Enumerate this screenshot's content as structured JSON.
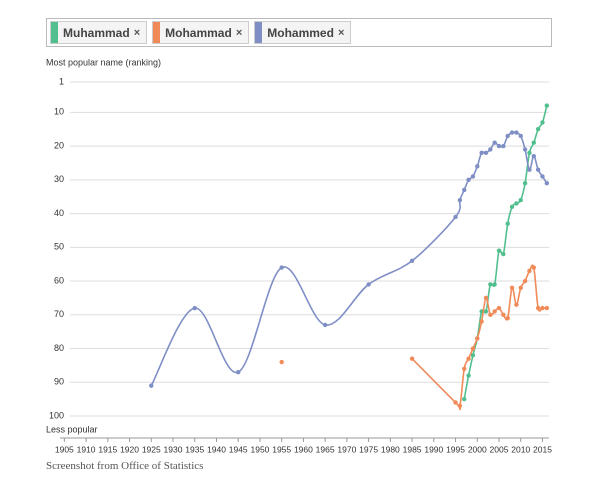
{
  "chart_data": {
    "type": "line",
    "y_title": "Most popular name (ranking)",
    "y_bottom_label": "Less popular",
    "legend_remove_icon": "×",
    "caption": "Screenshot from Office of Statistics",
    "xlim": [
      1904,
      2016.5
    ],
    "xticks": [
      1905,
      1910,
      1915,
      1920,
      1925,
      1930,
      1935,
      1940,
      1945,
      1950,
      1955,
      1960,
      1965,
      1970,
      1975,
      1980,
      1985,
      1990,
      1995,
      2000,
      2005,
      2010,
      2015
    ],
    "ylim": [
      100,
      1
    ],
    "yticks": [
      1,
      10,
      20,
      30,
      40,
      50,
      60,
      70,
      80,
      90,
      100
    ],
    "grid": true,
    "series": [
      {
        "name": "Muhammad",
        "color": "#52bf8f",
        "x": [
          1997,
          1998,
          1999,
          2000,
          2001,
          2002,
          2003,
          2004,
          2005,
          2006,
          2007,
          2008,
          2009,
          2010,
          2011,
          2012,
          2013,
          2014,
          2015,
          2016
        ],
        "values": [
          95,
          88,
          82,
          77,
          69,
          69,
          61,
          61,
          51,
          52,
          43,
          38,
          37,
          36,
          31,
          22,
          19,
          15,
          13,
          8
        ]
      },
      {
        "name": "Mohammad",
        "color": "#f08a58",
        "x": [
          1955,
          null,
          1985,
          1995,
          1996,
          1997,
          1998,
          1999,
          2000,
          2001,
          2002,
          2003,
          2004,
          2005,
          2006,
          2007,
          2008,
          2009,
          2010,
          2011,
          2012,
          2013,
          2014,
          2015,
          2016
        ],
        "values": [
          84,
          null,
          83,
          96,
          97,
          86,
          83,
          80,
          77,
          72,
          65,
          70,
          69,
          68,
          70,
          71,
          62,
          67,
          62,
          60,
          57,
          56,
          68,
          68,
          68
        ]
      },
      {
        "name": "Mohammed",
        "color": "#7f8fc6",
        "x": [
          1925,
          1935,
          1945,
          1955,
          1965,
          1975,
          1985,
          1995,
          1996,
          1997,
          1998,
          1999,
          2000,
          2001,
          2002,
          2003,
          2004,
          2005,
          2006,
          2007,
          2008,
          2009,
          2010,
          2011,
          2012,
          2013,
          2014,
          2015,
          2016
        ],
        "values": [
          91,
          68,
          87,
          56,
          73,
          61,
          54,
          41,
          36,
          33,
          30,
          29,
          26,
          22,
          22,
          21,
          19,
          20,
          20,
          17,
          16,
          16,
          17,
          21,
          27,
          23,
          27,
          29,
          31
        ]
      }
    ]
  }
}
